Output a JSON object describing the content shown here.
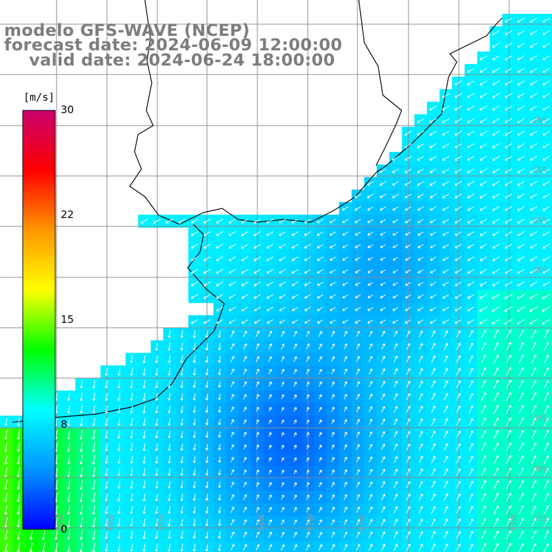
{
  "title": {
    "model": "modelo GFS-WAVE (NCEP)",
    "forecast": "forecast date: 2024-06-09 12:00:00",
    "valid": "valid date: 2024-06-24 18:00:00"
  },
  "colorbar": {
    "unit": "[m/s]",
    "ticks": [
      {
        "value": 30,
        "label": "30"
      },
      {
        "value": 22,
        "label": "22"
      },
      {
        "value": 15,
        "label": "15"
      },
      {
        "value": 8,
        "label": "8"
      },
      {
        "value": 0,
        "label": "0"
      }
    ],
    "range": [
      0,
      30
    ],
    "palette": [
      "#0000ff",
      "#0096ff",
      "#00ffff",
      "#00ff00",
      "#ffff00",
      "#ff9600",
      "#ff0000",
      "#c8006e"
    ]
  },
  "map": {
    "lon_range": [
      -63,
      -43
    ],
    "lat_range": [
      -41,
      -21
    ],
    "grid_step_lon": 2,
    "grid_step_lat": 2,
    "lat_labels": [
      "29S",
      "31S",
      "33S",
      "35S",
      "37S",
      "39S",
      "41S"
    ],
    "lon_labels": [
      "63W",
      "62W",
      "59W",
      "56W",
      "54W",
      "51W",
      "47W",
      "45W"
    ],
    "land_color": "#ffffff",
    "grid_color": "#8c8c8c",
    "arrow_color": "#ffffff"
  }
}
